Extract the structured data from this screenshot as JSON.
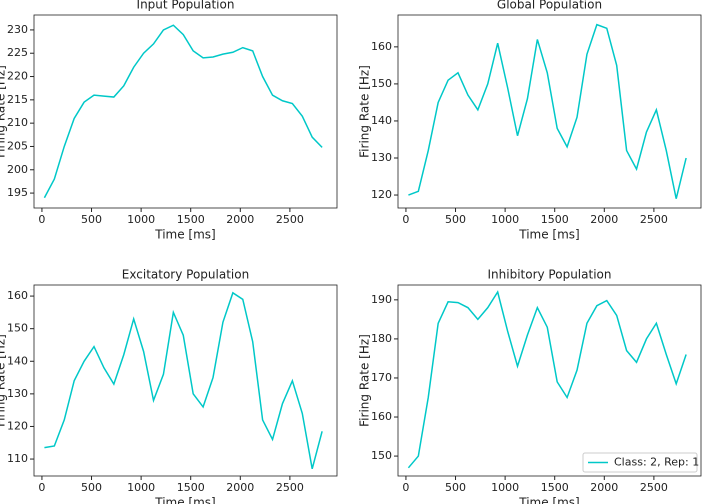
{
  "chart_data": [
    {
      "type": "line",
      "title": "Input Population",
      "xlabel": "Time [ms]",
      "ylabel": "Firing Rate [Hz]",
      "x": [
        25,
        125,
        225,
        325,
        425,
        525,
        625,
        725,
        825,
        925,
        1025,
        1125,
        1225,
        1325,
        1425,
        1525,
        1625,
        1725,
        1825,
        1925,
        2025,
        2125,
        2225,
        2325,
        2425,
        2525,
        2625,
        2725,
        2825
      ],
      "series": [
        {
          "color": "#00c8c8",
          "values": [
            194,
            198,
            205,
            211,
            214.5,
            216,
            215.8,
            215.6,
            218,
            222,
            225,
            227,
            230,
            231,
            229,
            225.5,
            224,
            224.2,
            224.8,
            225.2,
            226.2,
            225.5,
            220,
            216,
            214.8,
            214.2,
            211.5,
            207,
            204.8
          ]
        }
      ],
      "xlim": [
        -80,
        2975
      ],
      "xticks": [
        0,
        500,
        1000,
        1500,
        2000,
        2500
      ],
      "ylim": [
        191.8,
        233.2
      ],
      "yticks": [
        195,
        200,
        205,
        210,
        215,
        220,
        225,
        230
      ]
    },
    {
      "type": "line",
      "title": "Global Population",
      "xlabel": "Time [ms]",
      "ylabel": "Firing Rate [Hz]",
      "x": [
        25,
        125,
        225,
        325,
        425,
        525,
        625,
        725,
        825,
        925,
        1025,
        1125,
        1225,
        1325,
        1425,
        1525,
        1625,
        1725,
        1825,
        1925,
        2025,
        2125,
        2225,
        2325,
        2425,
        2525,
        2625,
        2725,
        2825
      ],
      "series": [
        {
          "color": "#00c8c8",
          "values": [
            120,
            121,
            132,
            145,
            151,
            153,
            147,
            143,
            150,
            161,
            149,
            136,
            146,
            162,
            153,
            138,
            133,
            141,
            158,
            166,
            165,
            155,
            132,
            127,
            137,
            143,
            132,
            119,
            130
          ]
        }
      ],
      "xlim": [
        -80,
        2975
      ],
      "xticks": [
        0,
        500,
        1000,
        1500,
        2000,
        2500
      ],
      "ylim": [
        116.5,
        168.6
      ],
      "yticks": [
        120,
        130,
        140,
        150,
        160
      ]
    },
    {
      "type": "line",
      "title": "Excitatory Population",
      "xlabel": "Time [ms]",
      "ylabel": "Firing Rate [Hz]",
      "x": [
        25,
        125,
        225,
        325,
        425,
        525,
        625,
        725,
        825,
        925,
        1025,
        1125,
        1225,
        1325,
        1425,
        1525,
        1625,
        1725,
        1825,
        1925,
        2025,
        2125,
        2225,
        2325,
        2425,
        2525,
        2625,
        2725,
        2825
      ],
      "series": [
        {
          "color": "#00c8c8",
          "values": [
            113.5,
            114,
            122,
            134,
            140,
            144.5,
            138,
            133,
            142,
            153,
            143,
            128,
            136,
            155,
            148,
            130,
            126,
            135,
            152,
            161,
            159,
            146,
            122,
            116,
            127,
            134,
            124,
            107,
            118.5
          ]
        }
      ],
      "xlim": [
        -80,
        2975
      ],
      "xticks": [
        0,
        500,
        1000,
        1500,
        2000,
        2500
      ],
      "ylim": [
        104.8,
        163.4
      ],
      "yticks": [
        110,
        120,
        130,
        140,
        150,
        160
      ]
    },
    {
      "type": "line",
      "title": "Inhibitory Population",
      "xlabel": "Time [ms]",
      "ylabel": "Firing Rate [Hz]",
      "x": [
        25,
        125,
        225,
        325,
        425,
        525,
        625,
        725,
        825,
        925,
        1025,
        1125,
        1225,
        1325,
        1425,
        1525,
        1625,
        1725,
        1825,
        1925,
        2025,
        2125,
        2225,
        2325,
        2425,
        2525,
        2625,
        2725,
        2825
      ],
      "series": [
        {
          "name": "Class: 2, Rep: 1",
          "color": "#00c8c8",
          "values": [
            147,
            150,
            165,
            184,
            189.5,
            189.3,
            188,
            185,
            188,
            192,
            182,
            173,
            181,
            188,
            183,
            169,
            165,
            172,
            184,
            188.5,
            189.8,
            186,
            177,
            174,
            180,
            184,
            176,
            168.5,
            176
          ]
        }
      ],
      "xlim": [
        -80,
        2975
      ],
      "xticks": [
        0,
        500,
        1000,
        1500,
        2000,
        2500
      ],
      "ylim": [
        144.9,
        193.8
      ],
      "yticks": [
        150,
        160,
        170,
        180,
        190
      ],
      "legend": "lower right"
    }
  ]
}
